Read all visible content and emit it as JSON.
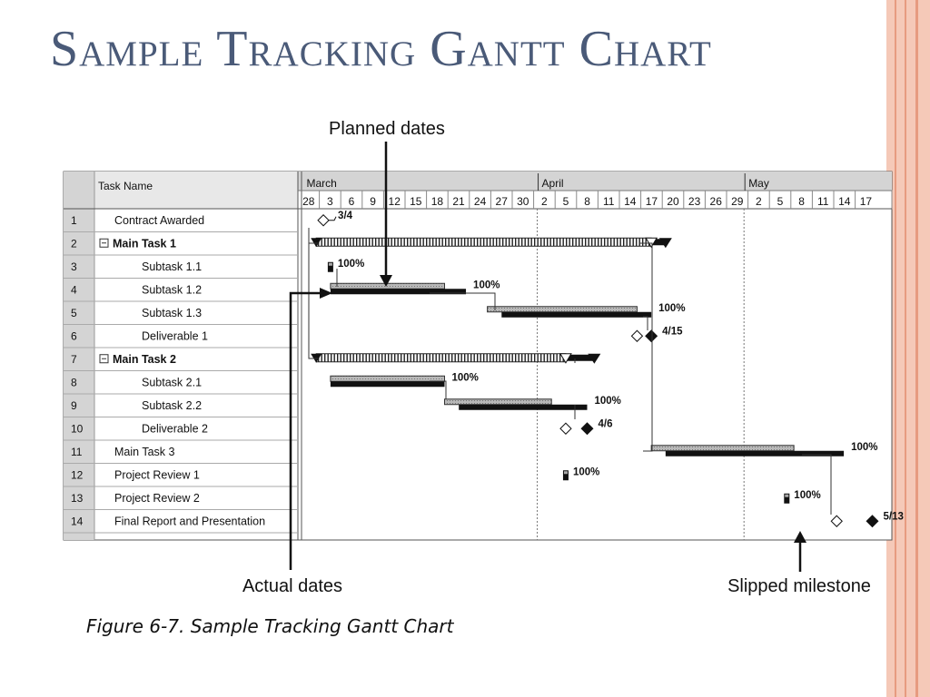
{
  "slide": {
    "title": "Sample Tracking Gantt Chart",
    "caption": "Figure 6-7. Sample Tracking Gantt Chart"
  },
  "callouts": {
    "planned": "Planned dates",
    "actual": "Actual dates",
    "slipped": "Slipped milestone"
  },
  "table": {
    "header": "Task Name",
    "rows": [
      {
        "id": "1",
        "name": "Contract Awarded",
        "indent": 1,
        "bold": false,
        "collapse": false
      },
      {
        "id": "2",
        "name": "Main Task 1",
        "indent": 0,
        "bold": true,
        "collapse": true
      },
      {
        "id": "3",
        "name": "Subtask 1.1",
        "indent": 2,
        "bold": false,
        "collapse": false
      },
      {
        "id": "4",
        "name": "Subtask 1.2",
        "indent": 2,
        "bold": false,
        "collapse": false
      },
      {
        "id": "5",
        "name": "Subtask 1.3",
        "indent": 2,
        "bold": false,
        "collapse": false
      },
      {
        "id": "6",
        "name": "Deliverable 1",
        "indent": 2,
        "bold": false,
        "collapse": false
      },
      {
        "id": "7",
        "name": "Main Task 2",
        "indent": 0,
        "bold": true,
        "collapse": true
      },
      {
        "id": "8",
        "name": "Subtask 2.1",
        "indent": 2,
        "bold": false,
        "collapse": false
      },
      {
        "id": "9",
        "name": "Subtask 2.2",
        "indent": 2,
        "bold": false,
        "collapse": false
      },
      {
        "id": "10",
        "name": "Deliverable 2",
        "indent": 2,
        "bold": false,
        "collapse": false
      },
      {
        "id": "11",
        "name": "Main Task 3",
        "indent": 1,
        "bold": false,
        "collapse": false
      },
      {
        "id": "12",
        "name": "Project Review 1",
        "indent": 1,
        "bold": false,
        "collapse": false
      },
      {
        "id": "13",
        "name": "Project Review 2",
        "indent": 1,
        "bold": false,
        "collapse": false
      },
      {
        "id": "14",
        "name": "Final Report and Presentation",
        "indent": 1,
        "bold": false,
        "collapse": false
      }
    ]
  },
  "timescale": {
    "months": [
      {
        "label": "March",
        "day": 0
      },
      {
        "label": "April",
        "day": 33
      },
      {
        "label": "May",
        "day": 62
      }
    ],
    "ticks": [
      "28",
      "3",
      "6",
      "9",
      "12",
      "15",
      "18",
      "21",
      "24",
      "27",
      "30",
      "2",
      "5",
      "8",
      "11",
      "14",
      "17",
      "20",
      "23",
      "26",
      "29",
      "2",
      "5",
      "8",
      "11",
      "14",
      "17"
    ]
  },
  "bars": [
    {
      "row": 2,
      "kind": "summary",
      "start": 2,
      "end": 51,
      "planned_start": 2,
      "planned_end": 49
    },
    {
      "row": 4,
      "kind": "task",
      "planned_start": 4,
      "planned_end": 20,
      "start": 4,
      "end": 23,
      "label": "100%"
    },
    {
      "row": 5,
      "kind": "task",
      "planned_start": 26,
      "planned_end": 47,
      "start": 28,
      "end": 49,
      "label": "100%"
    },
    {
      "row": 7,
      "kind": "summary",
      "start": 2,
      "end": 41,
      "planned_start": 2,
      "planned_end": 37
    },
    {
      "row": 8,
      "kind": "task",
      "planned_start": 4,
      "planned_end": 20,
      "start": 4,
      "end": 20,
      "label": "100%"
    },
    {
      "row": 9,
      "kind": "task",
      "planned_start": 20,
      "planned_end": 35,
      "start": 22,
      "end": 40,
      "label": "100%"
    },
    {
      "row": 11,
      "kind": "task",
      "planned_start": 49,
      "planned_end": 69,
      "start": 51,
      "end": 76,
      "label": "100%"
    }
  ],
  "milestones": [
    {
      "row": 1,
      "planned": 3,
      "label": "3/4"
    },
    {
      "row": 6,
      "planned": 47,
      "actual": 49,
      "label": "4/15"
    },
    {
      "row": 10,
      "planned": 37,
      "actual": 40,
      "label": "4/6"
    },
    {
      "row": 14,
      "planned": 75,
      "actual": 80,
      "label": "5/13"
    }
  ],
  "short_tasks": [
    {
      "row": 3,
      "day": 4,
      "label": "100%"
    },
    {
      "row": 12,
      "day": 37,
      "label": "100%"
    },
    {
      "row": 13,
      "day": 68,
      "label": "100%"
    }
  ]
}
